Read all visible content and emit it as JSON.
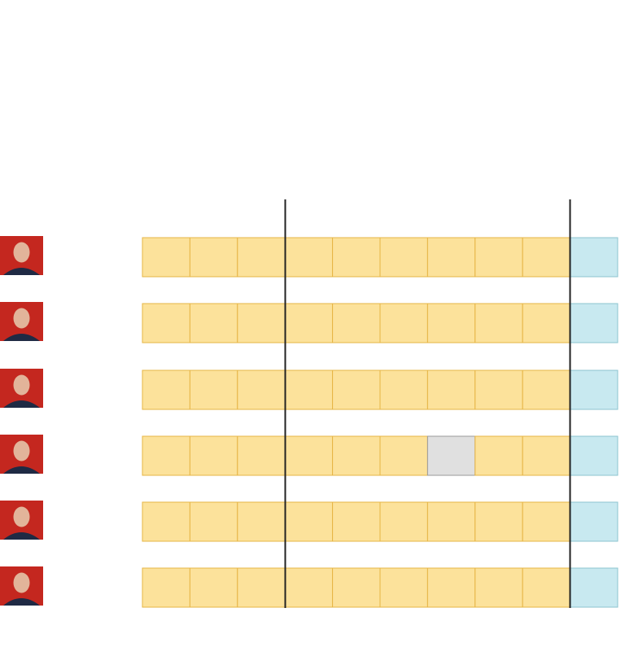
{
  "grid": {
    "rows": [
      [
        "#fce29b",
        "#fce29b",
        "#fce29b",
        "#fce29b",
        "#fce29b",
        "#fce29b",
        "#fce29b",
        "#fce29b",
        "#fce29b",
        "#c8e9f0"
      ],
      [
        "#fce29b",
        "#fce29b",
        "#fce29b",
        "#fce29b",
        "#fce29b",
        "#fce29b",
        "#fce29b",
        "#fce29b",
        "#fce29b",
        "#c8e9f0"
      ],
      [
        "#fce29b",
        "#fce29b",
        "#fce29b",
        "#fce29b",
        "#fce29b",
        "#fce29b",
        "#fce29b",
        "#fce29b",
        "#fce29b",
        "#c8e9f0"
      ],
      [
        "#fce29b",
        "#fce29b",
        "#fce29b",
        "#fce29b",
        "#fce29b",
        "#fce29b",
        "#e0e0e0",
        "#fce29b",
        "#fce29b",
        "#c8e9f0"
      ],
      [
        "#fce29b",
        "#fce29b",
        "#fce29b",
        "#fce29b",
        "#fce29b",
        "#fce29b",
        "#fce29b",
        "#fce29b",
        "#fce29b",
        "#c8e9f0"
      ],
      [
        "#fce29b",
        "#fce29b",
        "#fce29b",
        "#fce29b",
        "#fce29b",
        "#fce29b",
        "#fce29b",
        "#fce29b",
        "#fce29b",
        "#c8e9f0"
      ]
    ]
  }
}
